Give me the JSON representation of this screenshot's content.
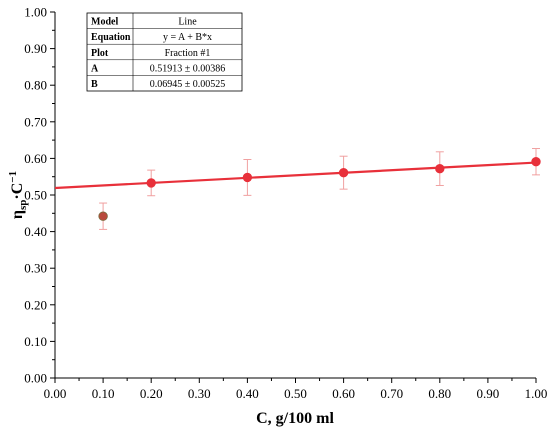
{
  "chart_data": {
    "type": "scatter",
    "xlabel": "C, g/100 ml",
    "ylabel_main": "η",
    "ylabel_sub": "sp",
    "ylabel_tail": "·C",
    "ylabel_sup": "−1",
    "xlim": [
      0.0,
      1.0
    ],
    "ylim": [
      0.0,
      1.0
    ],
    "x_ticks": [
      "0.00",
      "0.10",
      "0.20",
      "0.30",
      "0.40",
      "0.50",
      "0.60",
      "0.70",
      "0.80",
      "0.90",
      "1.00"
    ],
    "y_ticks": [
      "0.00",
      "0.10",
      "0.20",
      "0.30",
      "0.40",
      "0.50",
      "0.60",
      "0.70",
      "0.80",
      "0.90",
      "1.00"
    ],
    "points": [
      {
        "x": 0.1,
        "y": 0.442,
        "err": 0.036,
        "excluded": true
      },
      {
        "x": 0.2,
        "y": 0.533,
        "err": 0.035,
        "excluded": false
      },
      {
        "x": 0.4,
        "y": 0.548,
        "err": 0.049,
        "excluded": false
      },
      {
        "x": 0.6,
        "y": 0.561,
        "err": 0.045,
        "excluded": false
      },
      {
        "x": 0.8,
        "y": 0.572,
        "err": 0.046,
        "excluded": false
      },
      {
        "x": 1.0,
        "y": 0.591,
        "err": 0.036,
        "excluded": false
      }
    ],
    "fit": {
      "intercept": 0.51913,
      "slope": 0.06945
    },
    "fit_table": [
      {
        "key": "Model",
        "value": "Line"
      },
      {
        "key": "Equation",
        "value": "y = A + B*x"
      },
      {
        "key": "Plot",
        "value": "Fraction #1"
      },
      {
        "key": "A",
        "value": "0.51913 ± 0.00386"
      },
      {
        "key": "B",
        "value": "0.06945 ± 0.00525"
      }
    ],
    "colors": {
      "line": "#e8303a",
      "marker": "#e8303a",
      "excluded_marker": "#b94a3c",
      "error_bar": "#f0a0a0",
      "axis": "#000000"
    }
  }
}
